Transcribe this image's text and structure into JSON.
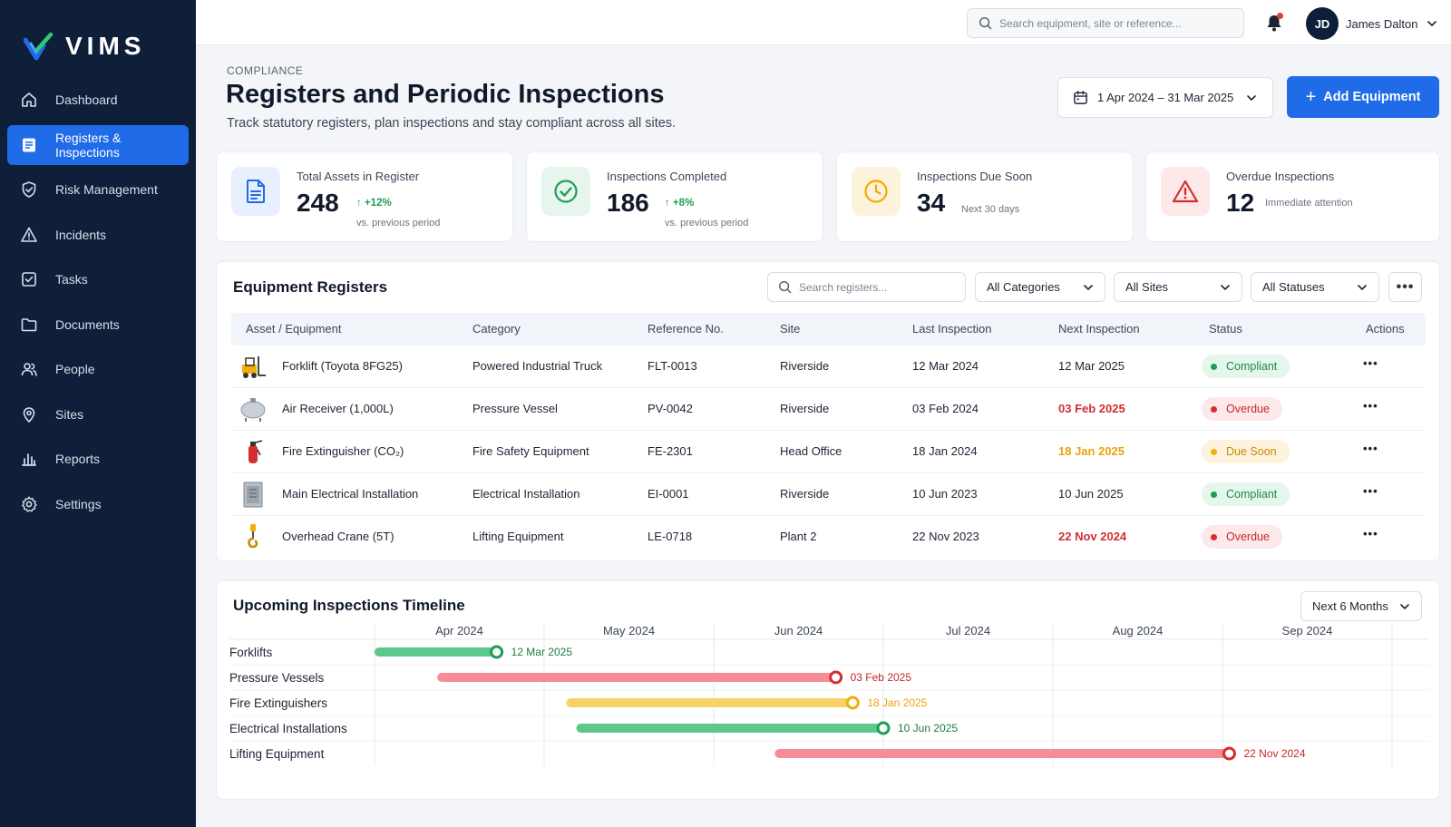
{
  "app": {
    "name": "VIMS"
  },
  "sidebar": {
    "items": [
      {
        "label": "Dashboard",
        "icon": "home-icon"
      },
      {
        "label": "Registers & Inspections",
        "icon": "register-icon",
        "active": true
      },
      {
        "label": "Risk Management",
        "icon": "shield-icon"
      },
      {
        "label": "Incidents",
        "icon": "warning-icon"
      },
      {
        "label": "Tasks",
        "icon": "checkbox-icon"
      },
      {
        "label": "Documents",
        "icon": "folder-icon"
      },
      {
        "label": "People",
        "icon": "people-icon"
      },
      {
        "label": "Sites",
        "icon": "pin-icon"
      },
      {
        "label": "Reports",
        "icon": "bar-chart-icon"
      },
      {
        "label": "Settings",
        "icon": "gear-icon"
      }
    ]
  },
  "topbar": {
    "search_placeholder": "Search equipment, site or reference...",
    "user_initials": "JD",
    "user_name": "James Dalton"
  },
  "header": {
    "eyebrow": "COMPLIANCE",
    "title": "Registers and Periodic Inspections",
    "subtitle": "Track statutory registers, plan inspections and stay compliant across all sites.",
    "date_range": "1 Apr 2024 – 31 Mar 2025",
    "add_button": "Add Equipment"
  },
  "stats": [
    {
      "label": "Total Assets in Register",
      "value": "248",
      "delta": "+12%",
      "sub": "vs. previous period",
      "color": "#1f6be8"
    },
    {
      "label": "Inspections Completed",
      "value": "186",
      "delta": "+8%",
      "sub": "vs. previous period",
      "color": "#1f9d55"
    },
    {
      "label": "Inspections Due Soon",
      "value": "34",
      "sub": "Next 30 days",
      "color": "#f2b007"
    },
    {
      "label": "Overdue Inspections",
      "value": "12",
      "sub": "Immediate attention",
      "color": "#d32f2f"
    }
  ],
  "registers": {
    "title": "Equipment Registers",
    "search_placeholder": "Search registers...",
    "filters": [
      "All Categories",
      "All Sites",
      "All Statuses"
    ],
    "columns": [
      "Asset / Equipment",
      "Category",
      "Reference No.",
      "Site",
      "Last Inspection",
      "Next Inspection",
      "Status",
      "Actions"
    ],
    "rows": [
      {
        "asset": "Forklift (Toyota 8FG25)",
        "category": "Powered Industrial Truck",
        "ref": "FLT-0013",
        "site": "Riverside",
        "last": "12 Mar 2024",
        "next": "12 Mar 2025",
        "status": "Compliant",
        "kind": "ok",
        "thumb": "forklift-icon"
      },
      {
        "asset": "Air Receiver (1,000L)",
        "category": "Pressure Vessel",
        "ref": "PV-0042",
        "site": "Riverside",
        "last": "03 Feb 2024",
        "next": "03 Feb 2025",
        "status": "Overdue",
        "kind": "over",
        "thumb": "pressure-vessel-icon"
      },
      {
        "asset": "Fire Extinguisher (CO₂)",
        "category": "Fire Safety Equipment",
        "ref": "FE-2301",
        "site": "Head Office",
        "last": "18 Jan 2024",
        "next": "18 Jan 2025",
        "status": "Due Soon",
        "kind": "soon",
        "thumb": "fire-extinguisher-icon"
      },
      {
        "asset": "Main Electrical Installation",
        "category": "Electrical Installation",
        "ref": "EI-0001",
        "site": "Riverside",
        "last": "10 Jun 2023",
        "next": "10 Jun 2025",
        "status": "Compliant",
        "kind": "ok",
        "thumb": "electrical-panel-icon"
      },
      {
        "asset": "Overhead Crane (5T)",
        "category": "Lifting Equipment",
        "ref": "LE-0718",
        "site": "Plant 2",
        "last": "22 Nov 2023",
        "next": "22 Nov 2024",
        "status": "Overdue",
        "kind": "over",
        "thumb": "crane-hook-icon"
      }
    ]
  },
  "timeline": {
    "title": "Upcoming Inspections Timeline",
    "range_select": "Next 6 Months",
    "months": [
      "Apr 2024",
      "May 2024",
      "Jun 2024",
      "Jul 2024",
      "Aug 2024",
      "Sep 2024"
    ],
    "rows": [
      {
        "label": "Forklifts",
        "start_month": 0.0,
        "end_month": 0.72,
        "date": "12 Mar 2025",
        "kind": "ok"
      },
      {
        "label": "Pressure Vessels",
        "start_month": 0.37,
        "end_month": 2.72,
        "date": "03 Feb 2025",
        "kind": "over"
      },
      {
        "label": "Fire Extinguishers",
        "start_month": 1.13,
        "end_month": 2.82,
        "date": "18 Jan 2025",
        "kind": "soon"
      },
      {
        "label": "Electrical Installations",
        "start_month": 1.19,
        "end_month": 3.0,
        "date": "10 Jun 2025",
        "kind": "ok"
      },
      {
        "label": "Lifting Equipment",
        "start_month": 2.36,
        "end_month": 5.04,
        "date": "22 Nov 2024",
        "kind": "over"
      }
    ]
  }
}
